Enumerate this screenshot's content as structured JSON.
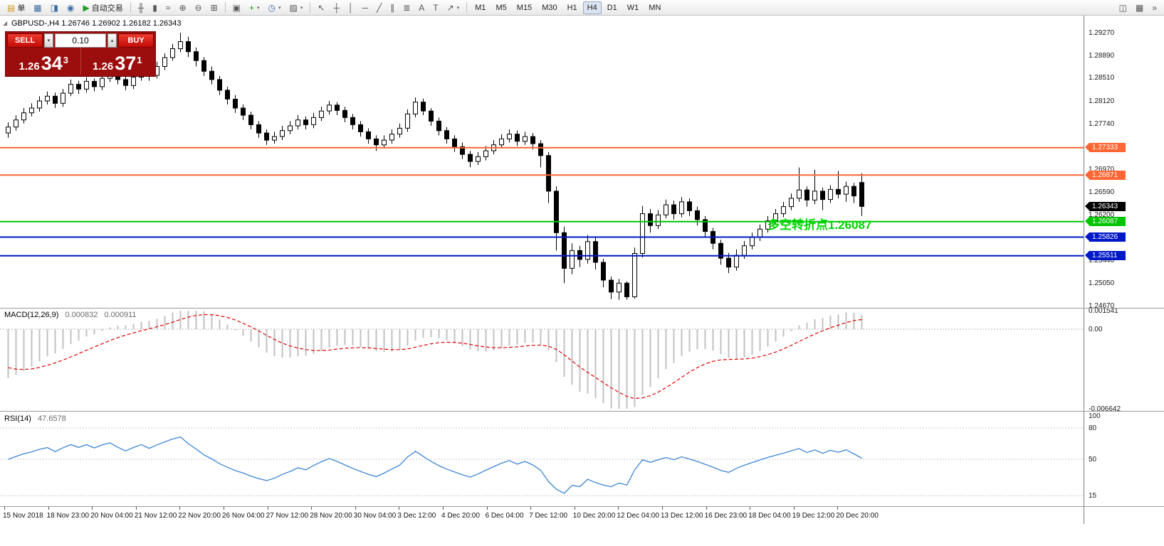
{
  "toolbar": {
    "caret_glyph": "▾",
    "groups": [
      {
        "name": "standard",
        "items": [
          {
            "name": "new-order-button",
            "icon": "new-order-icon",
            "glyph": "▤",
            "color": "#cf9b22",
            "label": "单"
          },
          {
            "name": "charts-button",
            "icon": "charts-icon",
            "glyph": "▦",
            "color": "#3b6ea5"
          },
          {
            "name": "profiles-button",
            "icon": "profiles-icon",
            "glyph": "◨",
            "color": "#3b6ea5"
          },
          {
            "name": "refresh-button",
            "icon": "refresh-icon",
            "glyph": "◉",
            "color": "#3b6ea5"
          },
          {
            "name": "autotrading-button",
            "icon": "autotrading-play-icon",
            "glyph": "▶",
            "color": "#1f9d1f",
            "label": "自动交易"
          }
        ]
      },
      {
        "name": "chart-view",
        "items": [
          {
            "name": "bar-chart-button",
            "icon": "bar-chart-icon",
            "glyph": "╫"
          },
          {
            "name": "candlestick-button",
            "icon": "candlestick-icon",
            "glyph": "▮"
          },
          {
            "name": "line-chart-button",
            "icon": "line-chart-icon",
            "glyph": "≈"
          },
          {
            "name": "zoom-in-button",
            "icon": "zoom-in-icon",
            "glyph": "⊕"
          },
          {
            "name": "zoom-out-button",
            "icon": "zoom-out-icon",
            "glyph": "⊖"
          },
          {
            "name": "tile-windows-button",
            "icon": "tile-windows-icon",
            "glyph": "⊞"
          }
        ]
      },
      {
        "name": "chart-tools",
        "items": [
          {
            "name": "arrange-windows-button",
            "icon": "arrange-windows-icon",
            "glyph": "▣"
          },
          {
            "name": "indicators-button",
            "icon": "indicators-icon",
            "glyph": "+",
            "color": "#1f9d1f",
            "caret": true
          },
          {
            "name": "periods-button",
            "icon": "periods-icon",
            "glyph": "◷",
            "color": "#3b6ea5",
            "caret": true
          },
          {
            "name": "templates-button",
            "icon": "templates-icon",
            "glyph": "▨",
            "caret": true
          }
        ]
      },
      {
        "name": "drawing",
        "items": [
          {
            "name": "cursor-button",
            "icon": "cursor-icon",
            "glyph": "↖"
          },
          {
            "name": "crosshair-button",
            "icon": "crosshair-icon",
            "glyph": "┼"
          },
          {
            "name": "vertical-line-button",
            "icon": "vertical-line-icon",
            "glyph": "│"
          },
          {
            "name": "horizontal-line-button",
            "icon": "horizontal-line-icon",
            "glyph": "─"
          },
          {
            "name": "trendline-button",
            "icon": "trendline-icon",
            "glyph": "╱"
          },
          {
            "name": "channel-button",
            "icon": "channel-icon",
            "glyph": "∥"
          },
          {
            "name": "fibonacci-button",
            "icon": "fibonacci-icon",
            "glyph": "≣"
          },
          {
            "name": "text-button",
            "icon": "text-icon",
            "glyph": "A"
          },
          {
            "name": "label-button",
            "icon": "label-icon",
            "glyph": "T"
          },
          {
            "name": "arrows-button",
            "icon": "arrows-icon",
            "glyph": "↗",
            "caret": true
          }
        ]
      },
      {
        "name": "timeframes",
        "items": [
          {
            "name": "timeframe-m1",
            "label": "M1"
          },
          {
            "name": "timeframe-m5",
            "label": "M5"
          },
          {
            "name": "timeframe-m15",
            "label": "M15"
          },
          {
            "name": "timeframe-m30",
            "label": "M30"
          },
          {
            "name": "timeframe-h1",
            "label": "H1"
          },
          {
            "name": "timeframe-h4",
            "label": "H4",
            "active": true
          },
          {
            "name": "timeframe-d1",
            "label": "D1"
          },
          {
            "name": "timeframe-w1",
            "label": "W1"
          },
          {
            "name": "timeframe-mn",
            "label": "MN"
          }
        ]
      },
      {
        "name": "window-controls",
        "right": true,
        "items": [
          {
            "name": "dock-button",
            "icon": "dock-icon",
            "glyph": "◫"
          },
          {
            "name": "layout-button",
            "icon": "layout-icon",
            "glyph": "▦"
          },
          {
            "name": "overflow-button",
            "icon": "overflow-icon",
            "glyph": "»"
          }
        ]
      }
    ]
  },
  "trade": {
    "sell_label": "SELL",
    "buy_label": "BUY",
    "volume": "0.10",
    "down_caret": "▾",
    "up_caret": "▴",
    "sell_price": {
      "base": "1.26",
      "big": "34",
      "pip": "3"
    },
    "buy_price": {
      "base": "1.26",
      "big": "37",
      "pip": "1"
    }
  },
  "chart": {
    "icon_glyph": "◢",
    "title": "GBPUSD-,H4 1.26746 1.26902 1.26182 1.26343",
    "annotation": {
      "text": "多空转折点1.26087",
      "color": "#00d500"
    }
  },
  "price_axis": {
    "labels": [
      "1.29270",
      "1.28890",
      "1.28510",
      "1.28120",
      "1.27740",
      "1.27360",
      "1.26970",
      "1.26590",
      "1.26200",
      "1.25820",
      "1.25440",
      "1.25050",
      "1.24670"
    ]
  },
  "lines": [
    {
      "label": "1.27333",
      "price": 1.27333,
      "color": "#ff6633",
      "width": 2
    },
    {
      "label": "1.26871",
      "price": 1.26871,
      "color": "#ff6633",
      "width": 2
    },
    {
      "label": "1.26343",
      "price": 1.26343,
      "color": "#000000",
      "width": 0,
      "current": true
    },
    {
      "label": "1.26087",
      "price": 1.26087,
      "color": "#00c400",
      "width": 2
    },
    {
      "label": "1.25826",
      "price": 1.25826,
      "color": "#0018c8",
      "width": 2
    },
    {
      "label": "1.25511",
      "price": 1.25511,
      "color": "#0018c8",
      "width": 2
    }
  ],
  "macd": {
    "label": "MACD(12,26,9)",
    "value1": "0.000832",
    "value2": "0.000911",
    "axis": [
      "0.001541",
      "0.00",
      "-0.006642"
    ]
  },
  "rsi": {
    "label": "RSI(14)",
    "value": "47.6578",
    "axis": [
      "100",
      "80",
      "50",
      "15"
    ],
    "levels": [
      80,
      50,
      15
    ]
  },
  "time_axis": {
    "labels": [
      "15 Nov 2018",
      "18 Nov 23:00",
      "20 Nov 04:00",
      "21 Nov 12:00",
      "22 Nov 20:00",
      "26 Nov 04:00",
      "27 Nov 12:00",
      "28 Nov 20:00",
      "30 Nov 04:00",
      "3 Dec 12:00",
      "4 Dec 20:00",
      "6 Dec 04:00",
      "7 Dec 12:00",
      "10 Dec 20:00",
      "12 Dec 04:00",
      "13 Dec 12:00",
      "16 Dec 23:00",
      "18 Dec 04:00",
      "19 Dec 12:00",
      "20 Dec 20:00"
    ]
  },
  "chart_data": {
    "type": "candlestick",
    "symbol": "GBPUSD-",
    "timeframe": "H4",
    "current_bar": {
      "open": 1.26746,
      "high": 1.26902,
      "low": 1.26182,
      "close": 1.26343
    },
    "bid": "1.26343",
    "ask": "1.26371",
    "ylim": [
      1.24634,
      1.29557
    ],
    "candles": [
      [
        1.2758,
        1.2776,
        1.275,
        1.2768
      ],
      [
        1.2768,
        1.2788,
        1.2762,
        1.278
      ],
      [
        1.278,
        1.28,
        1.2774,
        1.2792
      ],
      [
        1.2792,
        1.2808,
        1.2786,
        1.28
      ],
      [
        1.28,
        1.282,
        1.2794,
        1.2812
      ],
      [
        1.2812,
        1.2828,
        1.2806,
        1.282
      ],
      [
        1.282,
        1.2826,
        1.28,
        1.2808
      ],
      [
        1.2808,
        1.2832,
        1.2802,
        1.2825
      ],
      [
        1.2825,
        1.2848,
        1.282,
        1.284
      ],
      [
        1.284,
        1.2846,
        1.2824,
        1.2832
      ],
      [
        1.2832,
        1.2852,
        1.2826,
        1.2845
      ],
      [
        1.2845,
        1.285,
        1.2828,
        1.2836
      ],
      [
        1.2836,
        1.2858,
        1.283,
        1.285
      ],
      [
        1.285,
        1.2868,
        1.2844,
        1.286
      ],
      [
        1.286,
        1.2866,
        1.284,
        1.2848
      ],
      [
        1.2848,
        1.2854,
        1.283,
        1.2838
      ],
      [
        1.2838,
        1.286,
        1.2832,
        1.2852
      ],
      [
        1.2852,
        1.2872,
        1.2846,
        1.2865
      ],
      [
        1.2865,
        1.287,
        1.2846,
        1.2855
      ],
      [
        1.2855,
        1.2878,
        1.285,
        1.287
      ],
      [
        1.287,
        1.2892,
        1.2864,
        1.2885
      ],
      [
        1.2885,
        1.2908,
        1.288,
        1.29
      ],
      [
        1.29,
        1.2927,
        1.2894,
        1.2912
      ],
      [
        1.2912,
        1.292,
        1.2886,
        1.2895
      ],
      [
        1.2895,
        1.2902,
        1.287,
        1.288
      ],
      [
        1.288,
        1.2886,
        1.2854,
        1.2862
      ],
      [
        1.2862,
        1.287,
        1.284,
        1.2848
      ],
      [
        1.2848,
        1.2854,
        1.2822,
        1.283
      ],
      [
        1.283,
        1.2836,
        1.2806,
        1.2815
      ],
      [
        1.2815,
        1.2822,
        1.2792,
        1.28
      ],
      [
        1.28,
        1.2806,
        1.278,
        1.2788
      ],
      [
        1.2788,
        1.2794,
        1.2764,
        1.2772
      ],
      [
        1.2772,
        1.2778,
        1.275,
        1.2758
      ],
      [
        1.2758,
        1.2764,
        1.2738,
        1.2746
      ],
      [
        1.2746,
        1.276,
        1.274,
        1.2752
      ],
      [
        1.2752,
        1.277,
        1.2746,
        1.2762
      ],
      [
        1.2762,
        1.2778,
        1.2756,
        1.277
      ],
      [
        1.277,
        1.2788,
        1.2764,
        1.278
      ],
      [
        1.278,
        1.2786,
        1.2764,
        1.2772
      ],
      [
        1.2772,
        1.2792,
        1.2766,
        1.2784
      ],
      [
        1.2784,
        1.2802,
        1.2778,
        1.2795
      ],
      [
        1.2795,
        1.2812,
        1.2789,
        1.2805
      ],
      [
        1.2805,
        1.281,
        1.2788,
        1.2796
      ],
      [
        1.2796,
        1.2802,
        1.2776,
        1.2784
      ],
      [
        1.2784,
        1.279,
        1.2764,
        1.2772
      ],
      [
        1.2772,
        1.2778,
        1.2752,
        1.276
      ],
      [
        1.276,
        1.2766,
        1.274,
        1.2748
      ],
      [
        1.2748,
        1.2754,
        1.2728,
        1.2738
      ],
      [
        1.2738,
        1.2754,
        1.2732,
        1.2746
      ],
      [
        1.2746,
        1.2764,
        1.274,
        1.2756
      ],
      [
        1.2756,
        1.2774,
        1.275,
        1.2766
      ],
      [
        1.2766,
        1.2798,
        1.276,
        1.279
      ],
      [
        1.279,
        1.2818,
        1.2784,
        1.281
      ],
      [
        1.281,
        1.2816,
        1.2788,
        1.2795
      ],
      [
        1.2795,
        1.28,
        1.277,
        1.2778
      ],
      [
        1.2778,
        1.2784,
        1.2754,
        1.2762
      ],
      [
        1.2762,
        1.2768,
        1.274,
        1.2748
      ],
      [
        1.2748,
        1.2754,
        1.2726,
        1.2735
      ],
      [
        1.2735,
        1.2742,
        1.2714,
        1.2722
      ],
      [
        1.2722,
        1.2728,
        1.27,
        1.271
      ],
      [
        1.271,
        1.2726,
        1.2704,
        1.2718
      ],
      [
        1.2718,
        1.2736,
        1.2712,
        1.2728
      ],
      [
        1.2728,
        1.2746,
        1.2722,
        1.2738
      ],
      [
        1.2738,
        1.2756,
        1.2732,
        1.2748
      ],
      [
        1.2748,
        1.2764,
        1.2742,
        1.2756
      ],
      [
        1.2756,
        1.2762,
        1.2736,
        1.2744
      ],
      [
        1.2744,
        1.276,
        1.2738,
        1.2752
      ],
      [
        1.2752,
        1.2758,
        1.273,
        1.274
      ],
      [
        1.274,
        1.2746,
        1.27,
        1.272
      ],
      [
        1.272,
        1.2726,
        1.264,
        1.266
      ],
      [
        1.266,
        1.2668,
        1.256,
        1.259
      ],
      [
        1.259,
        1.26,
        1.2505,
        1.253
      ],
      [
        1.253,
        1.2572,
        1.252,
        1.256
      ],
      [
        1.256,
        1.2568,
        1.2532,
        1.2545
      ],
      [
        1.2545,
        1.2586,
        1.2538,
        1.2575
      ],
      [
        1.2575,
        1.2582,
        1.2528,
        1.254
      ],
      [
        1.254,
        1.2546,
        1.2498,
        1.251
      ],
      [
        1.251,
        1.2516,
        1.2478,
        1.249
      ],
      [
        1.249,
        1.2512,
        1.2477,
        1.2505
      ],
      [
        1.2505,
        1.2508,
        1.2477,
        1.2482
      ],
      [
        1.2482,
        1.2565,
        1.2479,
        1.2555
      ],
      [
        1.2555,
        1.2635,
        1.2548,
        1.2622
      ],
      [
        1.2622,
        1.263,
        1.259,
        1.2602
      ],
      [
        1.2602,
        1.2628,
        1.2596,
        1.262
      ],
      [
        1.262,
        1.2646,
        1.2614,
        1.2637
      ],
      [
        1.2637,
        1.2644,
        1.2612,
        1.2622
      ],
      [
        1.2622,
        1.265,
        1.2616,
        1.2642
      ],
      [
        1.2642,
        1.2648,
        1.2618,
        1.2627
      ],
      [
        1.2627,
        1.2634,
        1.2602,
        1.2612
      ],
      [
        1.2612,
        1.2618,
        1.2582,
        1.2592
      ],
      [
        1.2592,
        1.2598,
        1.2562,
        1.2572
      ],
      [
        1.2572,
        1.2578,
        1.2536,
        1.2547
      ],
      [
        1.2547,
        1.2556,
        1.2522,
        1.2532
      ],
      [
        1.2532,
        1.2562,
        1.2526,
        1.2552
      ],
      [
        1.2552,
        1.2576,
        1.2546,
        1.2568
      ],
      [
        1.2568,
        1.259,
        1.2562,
        1.2582
      ],
      [
        1.2582,
        1.2604,
        1.2576,
        1.2596
      ],
      [
        1.2596,
        1.2618,
        1.259,
        1.261
      ],
      [
        1.261,
        1.263,
        1.2604,
        1.2622
      ],
      [
        1.2622,
        1.2642,
        1.2616,
        1.2634
      ],
      [
        1.2634,
        1.2656,
        1.2628,
        1.2648
      ],
      [
        1.2648,
        1.27,
        1.2642,
        1.2662
      ],
      [
        1.2662,
        1.2668,
        1.2634,
        1.2645
      ],
      [
        1.2645,
        1.2696,
        1.2638,
        1.266
      ],
      [
        1.266,
        1.2666,
        1.2628,
        1.2646
      ],
      [
        1.2646,
        1.267,
        1.264,
        1.2663
      ],
      [
        1.2663,
        1.2694,
        1.2648,
        1.2655
      ],
      [
        1.2655,
        1.2676,
        1.2642,
        1.2668
      ],
      [
        1.2668,
        1.2674,
        1.264,
        1.2652
      ],
      [
        1.26746,
        1.26902,
        1.26182,
        1.26343
      ]
    ],
    "indicators": [
      {
        "name": "MACD(12,26,9)",
        "type": "bar_with_signal",
        "shown_values": [
          "0.000832",
          "0.000911"
        ],
        "axis_range": [
          "0.001541",
          "-0.006642"
        ]
      },
      {
        "name": "RSI(14)",
        "type": "line",
        "shown_values": [
          "47.6578"
        ],
        "levels": [
          80,
          50,
          15
        ]
      }
    ]
  }
}
